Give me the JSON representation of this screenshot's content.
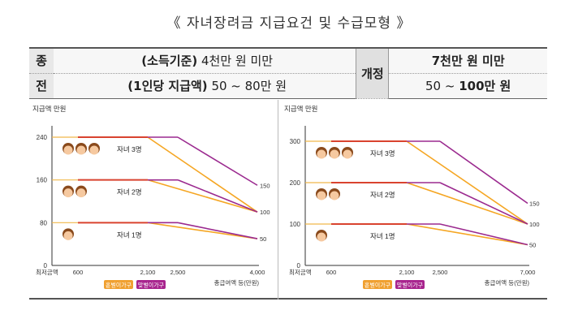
{
  "title": "《 자녀장려금 지급요건 및 수급모형 》",
  "table": {
    "old_label_1": "종",
    "old_label_2": "전",
    "old_row1": {
      "bold": "(소득기준)",
      "text": " 4천만 원 미만"
    },
    "old_row2": {
      "bold": "(1인당 지급액)",
      "text": " 50 ~ 80만 원"
    },
    "new_label": "개정",
    "new_row1": {
      "bold": "7천만 원 미만"
    },
    "new_row2": {
      "pre": "50 ~ ",
      "bold": "100만 원"
    }
  },
  "chart_data": [
    {
      "type": "line",
      "ylabel": "지급액 만원",
      "xlabel": "총급여액 등(만원)",
      "x_start_label": "최저금액",
      "x_ticks": [
        {
          "value": 600,
          "label": "600"
        },
        {
          "value": 2100,
          "label": "2,100"
        },
        {
          "value": 2500,
          "label": "2,500"
        },
        {
          "value": 4000,
          "label": "4,000"
        }
      ],
      "y_ticks": [
        {
          "value": 0,
          "label": "0"
        },
        {
          "value": 80,
          "label": "80"
        },
        {
          "value": 160,
          "label": "160"
        },
        {
          "value": 240,
          "label": "240"
        }
      ],
      "right_ticks": [
        {
          "value": 150,
          "label": "150"
        },
        {
          "value": 100,
          "label": "100"
        },
        {
          "value": 50,
          "label": "50"
        }
      ],
      "xlim": [
        0,
        4000
      ],
      "ylim": [
        0,
        260
      ],
      "series": [
        {
          "name": "자녀 3명",
          "icons": 3,
          "peak": 240,
          "single_end": 100,
          "dual_end": 150
        },
        {
          "name": "자녀 2명",
          "icons": 2,
          "peak": 160,
          "single_end": 100,
          "dual_end": 100
        },
        {
          "name": "자녀 1명",
          "icons": 1,
          "peak": 80,
          "single_end": 50,
          "dual_end": 50
        }
      ],
      "legend": [
        "홑벌이가구",
        "맞벌이가구"
      ]
    },
    {
      "type": "line",
      "ylabel": "지급액 만원",
      "xlabel": "총급여액 등(만원)",
      "x_start_label": "최저금액",
      "x_ticks": [
        {
          "value": 600,
          "label": "600"
        },
        {
          "value": 2100,
          "label": "2,100"
        },
        {
          "value": 2500,
          "label": "2,500"
        },
        {
          "value": 7000,
          "label": "7,000"
        }
      ],
      "y_ticks": [
        {
          "value": 0,
          "label": "0"
        },
        {
          "value": 100,
          "label": "100"
        },
        {
          "value": 200,
          "label": "200"
        },
        {
          "value": 300,
          "label": "300"
        }
      ],
      "right_ticks": [
        {
          "value": 150,
          "label": "150"
        },
        {
          "value": 100,
          "label": "100"
        },
        {
          "value": 50,
          "label": "50"
        }
      ],
      "xlim": [
        0,
        7000
      ],
      "ylim": [
        0,
        330
      ],
      "series": [
        {
          "name": "자녀 3명",
          "icons": 3,
          "peak": 300,
          "single_end": 100,
          "dual_end": 150
        },
        {
          "name": "자녀 2명",
          "icons": 2,
          "peak": 200,
          "single_end": 100,
          "dual_end": 100
        },
        {
          "name": "자녀 1명",
          "icons": 1,
          "peak": 100,
          "single_end": 50,
          "dual_end": 50
        }
      ],
      "legend": [
        "홑벌이가구",
        "맞벌이가구"
      ]
    }
  ],
  "colors": {
    "single": "#f5a623",
    "dual": "#9b2a8f",
    "legend_single": "#f0a030",
    "legend_dual": "#a8248e",
    "flat_line": "#d9432f",
    "face_skin": "#f6c9a0",
    "face_hair": "#8a4a1c"
  }
}
